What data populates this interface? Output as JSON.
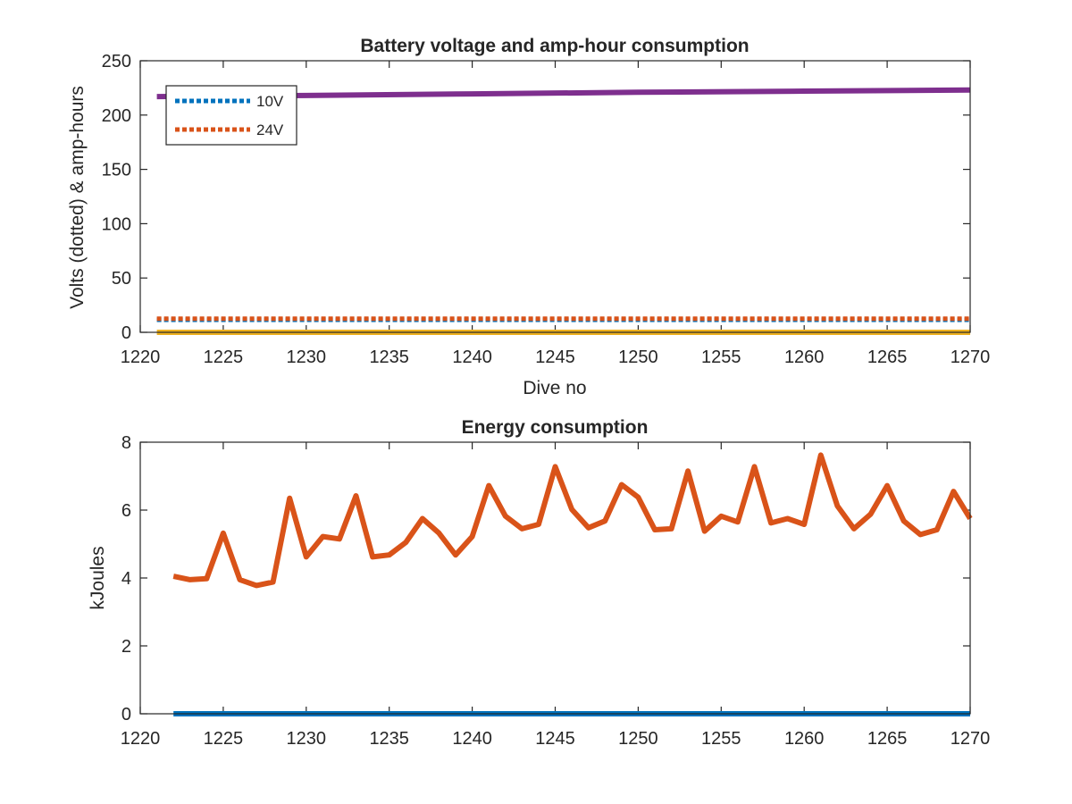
{
  "chart_data": [
    {
      "type": "line",
      "title": "Battery voltage and amp-hour consumption",
      "xlabel": "Dive no",
      "ylabel": "Volts (dotted) & amp-hours",
      "xlim": [
        1220,
        1270
      ],
      "ylim": [
        0,
        250
      ],
      "xticks": [
        1220,
        1225,
        1230,
        1235,
        1240,
        1245,
        1250,
        1255,
        1260,
        1265,
        1270
      ],
      "yticks": [
        0,
        50,
        100,
        150,
        200,
        250
      ],
      "grid": false,
      "legend_position": "top-left",
      "series": [
        {
          "name": "10V",
          "style": "dotted",
          "color": "#0072BD",
          "x": [
            1221,
            1270
          ],
          "y": [
            11.5,
            11.5
          ]
        },
        {
          "name": "24V",
          "style": "dotted",
          "color": "#D95319",
          "x": [
            1221,
            1270
          ],
          "y": [
            12.5,
            12.5
          ]
        },
        {
          "style": "solid",
          "color": "#EDB120",
          "x": [
            1221,
            1270
          ],
          "y": [
            0,
            0
          ]
        },
        {
          "style": "solid",
          "color": "#7E2F8E",
          "x": [
            1221,
            1230,
            1240,
            1250,
            1260,
            1270
          ],
          "y": [
            217,
            218,
            219.5,
            221,
            222,
            223
          ]
        }
      ]
    },
    {
      "type": "line",
      "title": "Energy consumption",
      "xlabel": "",
      "ylabel": "kJoules",
      "xlim": [
        1220,
        1270
      ],
      "ylim": [
        0,
        8
      ],
      "xticks": [
        1220,
        1225,
        1230,
        1235,
        1240,
        1245,
        1250,
        1255,
        1260,
        1265,
        1270
      ],
      "yticks": [
        0,
        2,
        4,
        6,
        8
      ],
      "grid": false,
      "series": [
        {
          "style": "solid",
          "color": "#0072BD",
          "x": [
            1222,
            1270
          ],
          "y": [
            0,
            0
          ]
        },
        {
          "style": "solid",
          "color": "#D95319",
          "x": [
            1222,
            1223,
            1224,
            1225,
            1226,
            1227,
            1228,
            1229,
            1230,
            1231,
            1232,
            1233,
            1234,
            1235,
            1236,
            1237,
            1238,
            1239,
            1240,
            1241,
            1242,
            1243,
            1244,
            1245,
            1246,
            1247,
            1248,
            1249,
            1250,
            1251,
            1252,
            1253,
            1254,
            1255,
            1256,
            1257,
            1258,
            1259,
            1260,
            1261,
            1262,
            1263,
            1264,
            1265,
            1266,
            1267,
            1268,
            1269,
            1270
          ],
          "y": [
            4.05,
            3.95,
            3.98,
            5.32,
            3.95,
            3.78,
            3.88,
            6.35,
            4.62,
            5.22,
            5.15,
            6.42,
            4.62,
            4.68,
            5.05,
            5.75,
            5.32,
            4.68,
            5.22,
            6.72,
            5.82,
            5.45,
            5.58,
            7.28,
            6.02,
            5.48,
            5.68,
            6.75,
            6.38,
            5.42,
            5.45,
            7.15,
            5.38,
            5.82,
            5.65,
            7.28,
            5.62,
            5.75,
            5.58,
            7.62,
            6.12,
            5.45,
            5.88,
            6.72,
            5.68,
            5.28,
            5.42,
            6.55,
            5.75
          ]
        }
      ]
    }
  ]
}
